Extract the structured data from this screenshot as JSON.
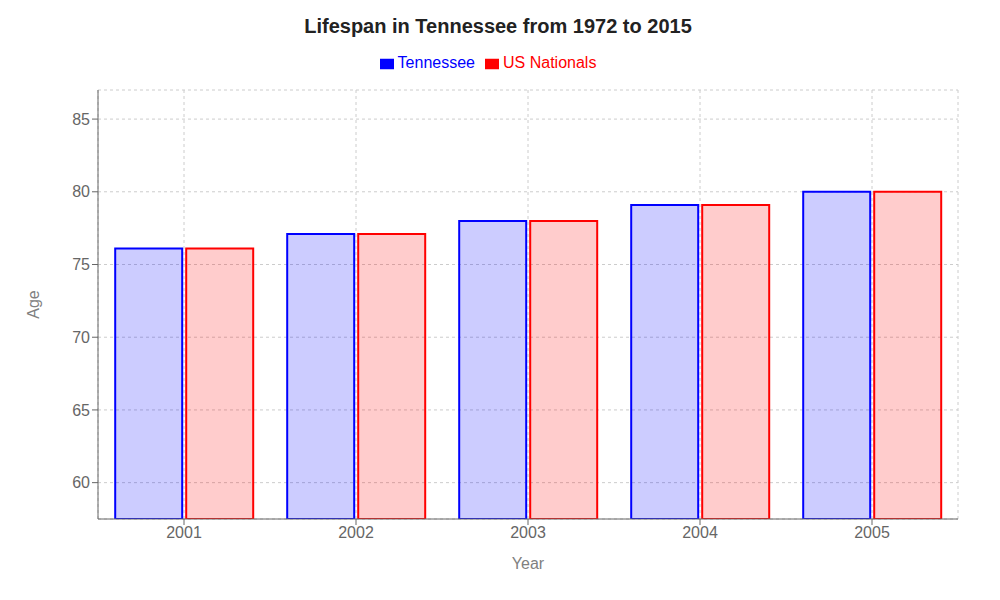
{
  "chart_data": {
    "type": "bar",
    "title": "Lifespan in Tennessee from 1972 to 2015",
    "x_label": "Year",
    "y_label": "Age",
    "categories": [
      "2001",
      "2002",
      "2003",
      "2004",
      "2005"
    ],
    "series": [
      {
        "name": "Tennessee",
        "color": "#0000ff",
        "values": [
          76.1,
          77.1,
          78.0,
          79.1,
          80.0
        ]
      },
      {
        "name": "US Nationals",
        "color": "#ff0000",
        "values": [
          76.1,
          77.1,
          78.0,
          79.1,
          80.0
        ]
      }
    ],
    "ylim": [
      57.5,
      87
    ],
    "yticks": [
      60,
      65,
      70,
      75,
      80,
      85
    ],
    "grid": true,
    "legend": "top"
  }
}
